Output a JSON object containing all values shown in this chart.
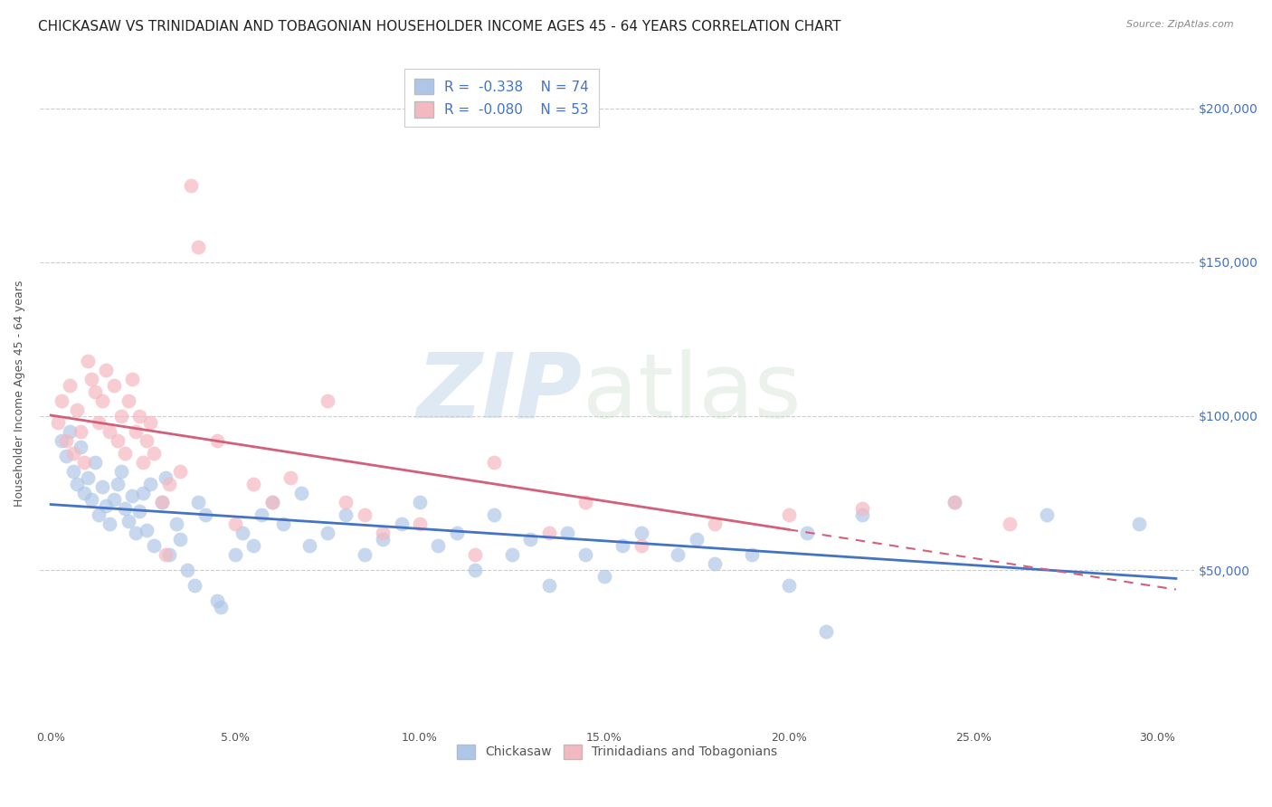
{
  "title": "CHICKASAW VS TRINIDADIAN AND TOBAGONIAN HOUSEHOLDER INCOME AGES 45 - 64 YEARS CORRELATION CHART",
  "source": "Source: ZipAtlas.com",
  "ylabel": "Householder Income Ages 45 - 64 years",
  "ylabel_ticks": [
    50000,
    100000,
    150000,
    200000
  ],
  "ylabel_labels": [
    "$50,000",
    "$100,000",
    "$150,000",
    "$200,000"
  ],
  "xlim": [
    -0.3,
    31.0
  ],
  "ylim": [
    0,
    215000
  ],
  "watermark_zip": "ZIP",
  "watermark_atlas": "atlas",
  "legend_entries": [
    {
      "color": "#aec6e8",
      "R": "-0.338",
      "N": "74"
    },
    {
      "color": "#f4b8c1",
      "R": "-0.080",
      "N": "53"
    }
  ],
  "legend_label_color": "#4472c4",
  "chickasaw_color": "#aec6e8",
  "trinidadian_color": "#f4b8c1",
  "chickasaw_line_color": "#4472c4",
  "trinidadian_line_color": "#d45f7a",
  "chickasaw_scatter": [
    [
      0.3,
      92000
    ],
    [
      0.4,
      87000
    ],
    [
      0.5,
      95000
    ],
    [
      0.6,
      82000
    ],
    [
      0.7,
      78000
    ],
    [
      0.8,
      90000
    ],
    [
      0.9,
      75000
    ],
    [
      1.0,
      80000
    ],
    [
      1.1,
      73000
    ],
    [
      1.2,
      85000
    ],
    [
      1.3,
      68000
    ],
    [
      1.4,
      77000
    ],
    [
      1.5,
      71000
    ],
    [
      1.6,
      65000
    ],
    [
      1.7,
      73000
    ],
    [
      1.8,
      78000
    ],
    [
      1.9,
      82000
    ],
    [
      2.0,
      70000
    ],
    [
      2.1,
      66000
    ],
    [
      2.2,
      74000
    ],
    [
      2.3,
      62000
    ],
    [
      2.4,
      69000
    ],
    [
      2.5,
      75000
    ],
    [
      2.6,
      63000
    ],
    [
      2.7,
      78000
    ],
    [
      2.8,
      58000
    ],
    [
      3.0,
      72000
    ],
    [
      3.1,
      80000
    ],
    [
      3.2,
      55000
    ],
    [
      3.4,
      65000
    ],
    [
      3.5,
      60000
    ],
    [
      3.7,
      50000
    ],
    [
      3.9,
      45000
    ],
    [
      4.0,
      72000
    ],
    [
      4.2,
      68000
    ],
    [
      4.5,
      40000
    ],
    [
      4.6,
      38000
    ],
    [
      5.0,
      55000
    ],
    [
      5.2,
      62000
    ],
    [
      5.5,
      58000
    ],
    [
      5.7,
      68000
    ],
    [
      6.0,
      72000
    ],
    [
      6.3,
      65000
    ],
    [
      6.8,
      75000
    ],
    [
      7.0,
      58000
    ],
    [
      7.5,
      62000
    ],
    [
      8.0,
      68000
    ],
    [
      8.5,
      55000
    ],
    [
      9.0,
      60000
    ],
    [
      9.5,
      65000
    ],
    [
      10.0,
      72000
    ],
    [
      10.5,
      58000
    ],
    [
      11.0,
      62000
    ],
    [
      11.5,
      50000
    ],
    [
      12.0,
      68000
    ],
    [
      12.5,
      55000
    ],
    [
      13.0,
      60000
    ],
    [
      13.5,
      45000
    ],
    [
      14.0,
      62000
    ],
    [
      14.5,
      55000
    ],
    [
      15.0,
      48000
    ],
    [
      15.5,
      58000
    ],
    [
      16.0,
      62000
    ],
    [
      17.0,
      55000
    ],
    [
      17.5,
      60000
    ],
    [
      18.0,
      52000
    ],
    [
      19.0,
      55000
    ],
    [
      20.0,
      45000
    ],
    [
      20.5,
      62000
    ],
    [
      21.0,
      30000
    ],
    [
      22.0,
      68000
    ],
    [
      24.5,
      72000
    ],
    [
      27.0,
      68000
    ],
    [
      29.5,
      65000
    ]
  ],
  "trinidadian_scatter": [
    [
      0.2,
      98000
    ],
    [
      0.3,
      105000
    ],
    [
      0.4,
      92000
    ],
    [
      0.5,
      110000
    ],
    [
      0.6,
      88000
    ],
    [
      0.7,
      102000
    ],
    [
      0.8,
      95000
    ],
    [
      0.9,
      85000
    ],
    [
      1.0,
      118000
    ],
    [
      1.1,
      112000
    ],
    [
      1.2,
      108000
    ],
    [
      1.3,
      98000
    ],
    [
      1.4,
      105000
    ],
    [
      1.5,
      115000
    ],
    [
      1.6,
      95000
    ],
    [
      1.7,
      110000
    ],
    [
      1.8,
      92000
    ],
    [
      1.9,
      100000
    ],
    [
      2.0,
      88000
    ],
    [
      2.1,
      105000
    ],
    [
      2.2,
      112000
    ],
    [
      2.3,
      95000
    ],
    [
      2.4,
      100000
    ],
    [
      2.5,
      85000
    ],
    [
      2.6,
      92000
    ],
    [
      2.7,
      98000
    ],
    [
      2.8,
      88000
    ],
    [
      3.0,
      72000
    ],
    [
      3.1,
      55000
    ],
    [
      3.2,
      78000
    ],
    [
      3.5,
      82000
    ],
    [
      3.8,
      175000
    ],
    [
      4.0,
      155000
    ],
    [
      4.5,
      92000
    ],
    [
      5.0,
      65000
    ],
    [
      5.5,
      78000
    ],
    [
      6.0,
      72000
    ],
    [
      6.5,
      80000
    ],
    [
      7.5,
      105000
    ],
    [
      8.0,
      72000
    ],
    [
      8.5,
      68000
    ],
    [
      9.0,
      62000
    ],
    [
      10.0,
      65000
    ],
    [
      11.5,
      55000
    ],
    [
      12.0,
      85000
    ],
    [
      13.5,
      62000
    ],
    [
      14.5,
      72000
    ],
    [
      16.0,
      58000
    ],
    [
      18.0,
      65000
    ],
    [
      20.0,
      68000
    ],
    [
      22.0,
      70000
    ],
    [
      24.5,
      72000
    ],
    [
      26.0,
      65000
    ]
  ],
  "background_color": "#ffffff",
  "grid_color": "#cccccc",
  "title_fontsize": 11,
  "axis_label_fontsize": 9,
  "tick_fontsize": 9,
  "right_label_color": "#4472c4",
  "trin_line_solid_end": 20.0,
  "trin_line_dash_start": 20.0
}
